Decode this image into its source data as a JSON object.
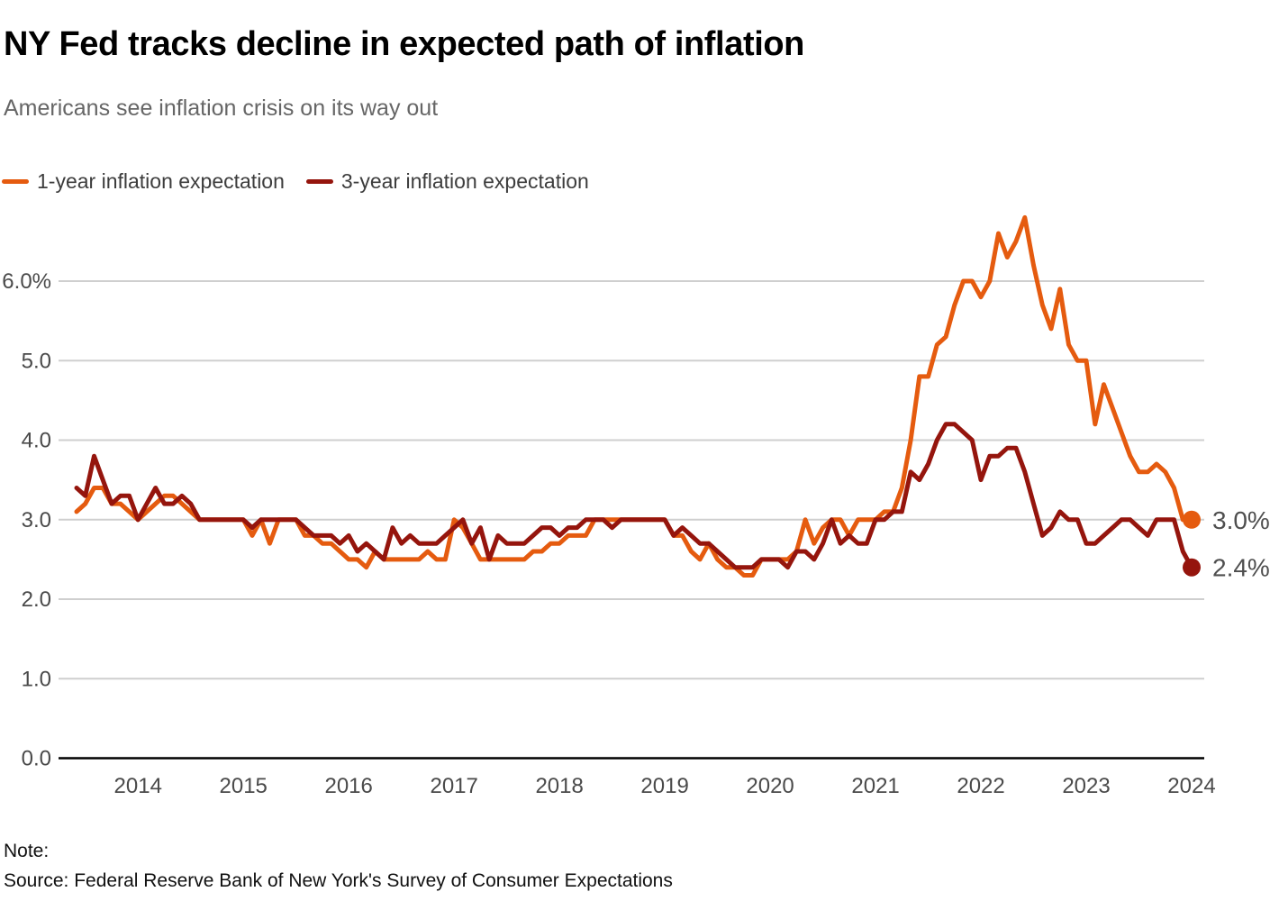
{
  "header": {
    "title": "NY Fed tracks decline in expected path of inflation",
    "subtitle": "Americans see inflation crisis on its way out"
  },
  "legend": [
    {
      "label": "1-year inflation expectation",
      "color": "#E55B0F"
    },
    {
      "label": "3-year inflation expectation",
      "color": "#95150D"
    }
  ],
  "chart_data": {
    "type": "line",
    "x_start": "2013-06",
    "x_end": "2024-01",
    "x_frequency": "monthly",
    "ylim": [
      0,
      6.8
    ],
    "grid": "horizontal",
    "legend_position": "top-left",
    "y_ticks": [
      {
        "label": "6.0%",
        "value": 6.0
      },
      {
        "label": "5.0",
        "value": 5.0
      },
      {
        "label": "4.0",
        "value": 4.0
      },
      {
        "label": "3.0",
        "value": 3.0
      },
      {
        "label": "2.0",
        "value": 2.0
      },
      {
        "label": "1.0",
        "value": 1.0
      },
      {
        "label": "0.0",
        "value": 0.0
      }
    ],
    "x_ticks": [
      {
        "label": "2014",
        "month_index": 7
      },
      {
        "label": "2015",
        "month_index": 19
      },
      {
        "label": "2016",
        "month_index": 31
      },
      {
        "label": "2017",
        "month_index": 43
      },
      {
        "label": "2018",
        "month_index": 55
      },
      {
        "label": "2019",
        "month_index": 67
      },
      {
        "label": "2020",
        "month_index": 79
      },
      {
        "label": "2021",
        "month_index": 91
      },
      {
        "label": "2022",
        "month_index": 103
      },
      {
        "label": "2023",
        "month_index": 115
      },
      {
        "label": "2024",
        "month_index": 127
      }
    ],
    "series": [
      {
        "name": "1-year inflation expectation",
        "color": "#E55B0F",
        "end_label": "3.0%",
        "end_dot": true,
        "values": [
          3.1,
          3.2,
          3.4,
          3.4,
          3.2,
          3.2,
          3.1,
          3.0,
          3.1,
          3.2,
          3.3,
          3.3,
          3.2,
          3.1,
          3.0,
          3.0,
          3.0,
          3.0,
          3.0,
          3.0,
          2.8,
          3.0,
          2.7,
          3.0,
          3.0,
          3.0,
          2.8,
          2.8,
          2.7,
          2.7,
          2.6,
          2.5,
          2.5,
          2.4,
          2.6,
          2.5,
          2.5,
          2.5,
          2.5,
          2.5,
          2.6,
          2.5,
          2.5,
          3.0,
          2.9,
          2.7,
          2.5,
          2.5,
          2.5,
          2.5,
          2.5,
          2.5,
          2.6,
          2.6,
          2.7,
          2.7,
          2.8,
          2.8,
          2.8,
          3.0,
          3.0,
          3.0,
          3.0,
          3.0,
          3.0,
          3.0,
          3.0,
          3.0,
          2.8,
          2.8,
          2.6,
          2.5,
          2.7,
          2.5,
          2.4,
          2.4,
          2.3,
          2.3,
          2.5,
          2.5,
          2.5,
          2.5,
          2.6,
          3.0,
          2.7,
          2.9,
          3.0,
          3.0,
          2.8,
          3.0,
          3.0,
          3.0,
          3.1,
          3.1,
          3.4,
          4.0,
          4.8,
          4.8,
          5.2,
          5.3,
          5.7,
          6.0,
          6.0,
          5.8,
          6.0,
          6.6,
          6.3,
          6.5,
          6.8,
          6.2,
          5.7,
          5.4,
          5.9,
          5.2,
          5.0,
          5.0,
          4.2,
          4.7,
          4.4,
          4.1,
          3.8,
          3.6,
          3.6,
          3.7,
          3.6,
          3.4,
          3.0,
          3.0
        ]
      },
      {
        "name": "3-year inflation expectation",
        "color": "#95150D",
        "end_label": "2.4%",
        "end_dot": true,
        "values": [
          3.4,
          3.3,
          3.8,
          3.5,
          3.2,
          3.3,
          3.3,
          3.0,
          3.2,
          3.4,
          3.2,
          3.2,
          3.3,
          3.2,
          3.0,
          3.0,
          3.0,
          3.0,
          3.0,
          3.0,
          2.9,
          3.0,
          3.0,
          3.0,
          3.0,
          3.0,
          2.9,
          2.8,
          2.8,
          2.8,
          2.7,
          2.8,
          2.6,
          2.7,
          2.6,
          2.5,
          2.9,
          2.7,
          2.8,
          2.7,
          2.7,
          2.7,
          2.8,
          2.9,
          3.0,
          2.7,
          2.9,
          2.5,
          2.8,
          2.7,
          2.7,
          2.7,
          2.8,
          2.9,
          2.9,
          2.8,
          2.9,
          2.9,
          3.0,
          3.0,
          3.0,
          2.9,
          3.0,
          3.0,
          3.0,
          3.0,
          3.0,
          3.0,
          2.8,
          2.9,
          2.8,
          2.7,
          2.7,
          2.6,
          2.5,
          2.4,
          2.4,
          2.4,
          2.5,
          2.5,
          2.5,
          2.4,
          2.6,
          2.6,
          2.5,
          2.7,
          3.0,
          2.7,
          2.8,
          2.7,
          2.7,
          3.0,
          3.0,
          3.1,
          3.1,
          3.6,
          3.5,
          3.7,
          4.0,
          4.2,
          4.2,
          4.1,
          4.0,
          3.5,
          3.8,
          3.8,
          3.9,
          3.9,
          3.6,
          3.2,
          2.8,
          2.9,
          3.1,
          3.0,
          3.0,
          2.7,
          2.7,
          2.8,
          2.9,
          3.0,
          3.0,
          2.9,
          2.8,
          3.0,
          3.0,
          3.0,
          2.6,
          2.4
        ]
      }
    ]
  },
  "footer": {
    "note_label": "Note:",
    "source": "Source: Federal Reserve Bank of New York's Survey of Consumer Expectations"
  },
  "colors": {
    "gridline": "#CFCFCF",
    "axis": "#000000",
    "tick_text": "#4A4A4A",
    "subtitle_text": "#666666"
  }
}
